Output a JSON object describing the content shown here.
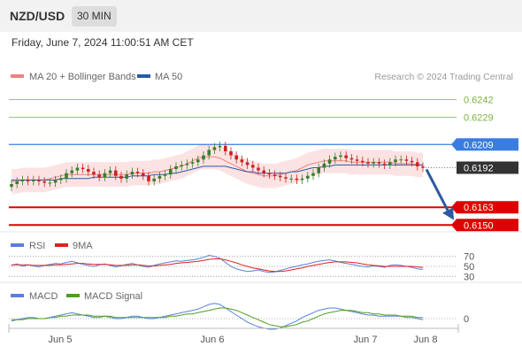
{
  "header": {
    "pair": "NZD/USD",
    "timeframe": "30 MIN",
    "datetime": "Friday, June 7, 2024 11:00:51 AM CET"
  },
  "legend": {
    "bollinger_label": "MA 20 + Bollinger Bands",
    "ma50_label": "MA 50",
    "credit": "Research © 2024 Trading Central"
  },
  "colors": {
    "bollinger": "#f08080",
    "bollinger_fill": "#fbdcdc",
    "ma50": "#2c5aa0",
    "resistance_green": "#7cb342",
    "resistance_blue": "#3a7de0",
    "support_red": "#e00000",
    "current_price": "#333333",
    "arrow": "#2c5aa0",
    "candle_up": "#3a7d2a",
    "candle_down": "#cc2222",
    "rsi": "#5b7fd6",
    "rsi_ma": "#dd2222",
    "macd": "#5b7fd6",
    "macd_signal": "#4ca020"
  },
  "chart_data": [
    {
      "type": "candlestick",
      "panel": "price",
      "ylim": [
        0.6145,
        0.625
      ],
      "ohlc_close_series": [
        0.618,
        0.6182,
        0.6183,
        0.6182,
        0.6183,
        0.6182,
        0.6181,
        0.6181,
        0.6183,
        0.6184,
        0.6188,
        0.619,
        0.6192,
        0.6191,
        0.6189,
        0.6187,
        0.6185,
        0.6188,
        0.619,
        0.6186,
        0.6184,
        0.6187,
        0.6189,
        0.6188,
        0.6186,
        0.6182,
        0.6184,
        0.6186,
        0.6187,
        0.6191,
        0.6193,
        0.6194,
        0.6195,
        0.6196,
        0.6198,
        0.6201,
        0.6205,
        0.6207,
        0.6208,
        0.6204,
        0.6201,
        0.6198,
        0.6196,
        0.6194,
        0.6192,
        0.619,
        0.6188,
        0.6187,
        0.6186,
        0.6185,
        0.6184,
        0.6184,
        0.6183,
        0.6184,
        0.6186,
        0.6188,
        0.6192,
        0.6195,
        0.6198,
        0.62,
        0.6201,
        0.6199,
        0.6198,
        0.6197,
        0.6196,
        0.6195,
        0.6196,
        0.6195,
        0.6194,
        0.6196,
        0.6198,
        0.6198,
        0.6197,
        0.6196,
        0.6193,
        0.6192
      ],
      "ma20_series": [
        0.6182,
        0.6182,
        0.6183,
        0.6183,
        0.6183,
        0.6183,
        0.6183,
        0.6184,
        0.6185,
        0.6186,
        0.6187,
        0.6187,
        0.6187,
        0.6187,
        0.6187,
        0.6187,
        0.6187,
        0.6187,
        0.6187,
        0.6187,
        0.6187,
        0.6187,
        0.6188,
        0.6188,
        0.6188,
        0.6188,
        0.6189,
        0.6189,
        0.619,
        0.6191,
        0.6192,
        0.6193,
        0.6195,
        0.6197,
        0.6199,
        0.62,
        0.62,
        0.62,
        0.6199,
        0.6197,
        0.6195,
        0.6193,
        0.6191,
        0.6189,
        0.6188,
        0.6187,
        0.6186,
        0.6186,
        0.6186,
        0.6187,
        0.6188,
        0.6189,
        0.619,
        0.6192,
        0.6194,
        0.6195,
        0.6196,
        0.6197,
        0.6197,
        0.6197,
        0.6197,
        0.6197,
        0.6196,
        0.6196,
        0.6196,
        0.6196,
        0.6196,
        0.6196,
        0.6196,
        0.6196,
        0.6195,
        0.6195,
        0.6195,
        0.6195,
        0.6194,
        0.6194
      ],
      "ma50_series": [
        0.6183,
        0.6183,
        0.6183,
        0.6183,
        0.6183,
        0.6183,
        0.6183,
        0.6183,
        0.6183,
        0.6184,
        0.6184,
        0.6184,
        0.6184,
        0.6184,
        0.6184,
        0.6185,
        0.6185,
        0.6185,
        0.6185,
        0.6185,
        0.6185,
        0.6185,
        0.6186,
        0.6186,
        0.6186,
        0.6186,
        0.6187,
        0.6187,
        0.6187,
        0.6188,
        0.6188,
        0.6189,
        0.619,
        0.6191,
        0.6192,
        0.6193,
        0.6193,
        0.6193,
        0.6193,
        0.6193,
        0.6192,
        0.6191,
        0.619,
        0.6189,
        0.6189,
        0.6188,
        0.6188,
        0.6188,
        0.6188,
        0.6188,
        0.6188,
        0.6189,
        0.6189,
        0.619,
        0.6191,
        0.6192,
        0.6192,
        0.6193,
        0.6193,
        0.6194,
        0.6194,
        0.6194,
        0.6194,
        0.6194,
        0.6194,
        0.6194,
        0.6194,
        0.6194,
        0.6194,
        0.6194,
        0.6194,
        0.6194,
        0.6194,
        0.6194,
        0.6194,
        0.6194
      ],
      "band_width": 0.0009,
      "levels": [
        {
          "value": 0.6242,
          "label": "0.6242",
          "kind": "resistance-green"
        },
        {
          "value": 0.6229,
          "label": "0.6229",
          "kind": "resistance-green"
        },
        {
          "value": 0.6209,
          "label": "0.6209",
          "kind": "resistance-blue"
        },
        {
          "value": 0.6192,
          "label": "0.6192",
          "kind": "current"
        },
        {
          "value": 0.6163,
          "label": "0.6163",
          "kind": "support-red"
        },
        {
          "value": 0.615,
          "label": "0.6150",
          "kind": "support-red"
        }
      ],
      "forecast_arrow": {
        "from": 0.6192,
        "to": 0.6155
      }
    },
    {
      "type": "line",
      "panel": "rsi",
      "legend": [
        "RSI",
        "9MA"
      ],
      "levels": [
        {
          "value": 70,
          "label": "70"
        },
        {
          "value": 50,
          "label": "50"
        },
        {
          "value": 30,
          "label": "30"
        }
      ],
      "ylim": [
        20,
        80
      ],
      "rsi": [
        52,
        55,
        50,
        53,
        51,
        49,
        52,
        54,
        56,
        55,
        58,
        60,
        57,
        54,
        52,
        50,
        53,
        55,
        52,
        49,
        51,
        54,
        56,
        53,
        50,
        48,
        52,
        55,
        57,
        59,
        61,
        60,
        62,
        63,
        65,
        68,
        72,
        70,
        66,
        58,
        50,
        45,
        42,
        40,
        41,
        43,
        40,
        38,
        39,
        42,
        45,
        48,
        50,
        53,
        55,
        58,
        60,
        62,
        63,
        61,
        58,
        56,
        54,
        52,
        50,
        49,
        51,
        50,
        48,
        52,
        53,
        52,
        50,
        48,
        45,
        44
      ],
      "rsi_ma": [
        53,
        53,
        53,
        53,
        52,
        52,
        52,
        52,
        53,
        53,
        54,
        55,
        56,
        56,
        55,
        54,
        54,
        54,
        53,
        52,
        52,
        52,
        53,
        53,
        52,
        51,
        51,
        52,
        53,
        54,
        56,
        57,
        58,
        59,
        60,
        62,
        64,
        65,
        65,
        63,
        60,
        57,
        53,
        50,
        47,
        45,
        43,
        41,
        40,
        40,
        41,
        43,
        45,
        47,
        50,
        52,
        54,
        56,
        58,
        59,
        59,
        59,
        58,
        57,
        55,
        53,
        52,
        51,
        50,
        50,
        50,
        50,
        50,
        50,
        49,
        48
      ]
    },
    {
      "type": "line",
      "panel": "macd",
      "legend": [
        "MACD",
        "MACD Signal"
      ],
      "levels": [
        {
          "value": 0,
          "label": "0"
        }
      ],
      "ylim": [
        -1.5,
        1.5
      ],
      "macd": [
        -0.2,
        -0.1,
        0.0,
        0.1,
        0.1,
        0.0,
        0.0,
        0.1,
        0.2,
        0.3,
        0.4,
        0.5,
        0.4,
        0.3,
        0.2,
        0.1,
        0.1,
        0.2,
        0.1,
        0.0,
        0.0,
        0.1,
        0.2,
        0.2,
        0.1,
        0.0,
        0.0,
        0.1,
        0.2,
        0.3,
        0.4,
        0.5,
        0.6,
        0.7,
        0.8,
        1.0,
        1.2,
        1.3,
        1.2,
        0.9,
        0.6,
        0.3,
        0.0,
        -0.3,
        -0.5,
        -0.7,
        -0.8,
        -0.9,
        -0.9,
        -0.8,
        -0.6,
        -0.4,
        -0.2,
        0.1,
        0.3,
        0.5,
        0.7,
        0.8,
        0.9,
        0.9,
        0.8,
        0.7,
        0.6,
        0.5,
        0.4,
        0.3,
        0.3,
        0.2,
        0.2,
        0.2,
        0.2,
        0.2,
        0.1,
        0.1,
        0.0,
        -0.1
      ],
      "signal": [
        -0.1,
        -0.1,
        -0.1,
        0.0,
        0.0,
        0.0,
        0.0,
        0.1,
        0.1,
        0.2,
        0.2,
        0.3,
        0.3,
        0.3,
        0.3,
        0.2,
        0.2,
        0.2,
        0.2,
        0.1,
        0.1,
        0.1,
        0.1,
        0.1,
        0.1,
        0.1,
        0.1,
        0.1,
        0.1,
        0.2,
        0.2,
        0.3,
        0.4,
        0.4,
        0.5,
        0.6,
        0.7,
        0.8,
        0.9,
        0.9,
        0.8,
        0.7,
        0.5,
        0.3,
        0.1,
        -0.1,
        -0.3,
        -0.5,
        -0.6,
        -0.7,
        -0.7,
        -0.6,
        -0.5,
        -0.3,
        -0.2,
        0.0,
        0.2,
        0.4,
        0.5,
        0.6,
        0.7,
        0.7,
        0.7,
        0.6,
        0.5,
        0.5,
        0.4,
        0.4,
        0.3,
        0.3,
        0.3,
        0.2,
        0.2,
        0.2,
        0.1,
        0.1
      ]
    }
  ],
  "x_axis": {
    "ticks": [
      {
        "index": 7,
        "label": "Jun 5"
      },
      {
        "index": 29,
        "label": "Jun 6"
      },
      {
        "index": 52,
        "label": "Jun 7"
      },
      {
        "index": 59,
        "label": "Jun 8"
      }
    ]
  }
}
